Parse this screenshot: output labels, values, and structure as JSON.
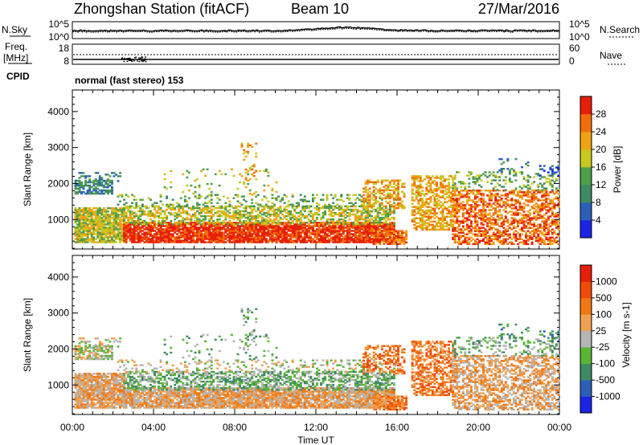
{
  "header": {
    "station_title": "Zhongshan Station (fitACF)",
    "beam": "Beam 10",
    "date": "27/Mar/2016",
    "mode": "normal (fast stereo) 153"
  },
  "top_panel": {
    "left_label": "N.Sky",
    "left_ticks": [
      "10^5",
      "10^0"
    ],
    "right_label": "N.Search",
    "right_ticks": [
      "10^5",
      "10^0"
    ]
  },
  "freq_panel": {
    "left_label_line1": "Freq.",
    "left_label_line2": "[MHz]",
    "left_ticks": [
      "18",
      "8"
    ],
    "cpid_label": "CPID",
    "right_label": "Nave",
    "right_ticks": [
      "60",
      "0"
    ]
  },
  "colors": {
    "power": [
      "#1a23e6",
      "#2d5fb8",
      "#3f8a62",
      "#4f9e4a",
      "#c8c81e",
      "#f0a214",
      "#f06e0a",
      "#e61e0a"
    ],
    "velocity": [
      "#e61e0a",
      "#f04a0a",
      "#f07814",
      "#f0a050",
      "#b4b4b4",
      "#5ab436",
      "#3f8a62",
      "#2d5fb8",
      "#1a23e6"
    ]
  },
  "chart_data": [
    {
      "type": "heatmap",
      "quantity": "power",
      "xlabel": "",
      "ylabel": "Slant Range [km]",
      "ylim": [
        180,
        4600
      ],
      "xlim_hours": [
        0,
        24
      ],
      "yticks": [
        "1000",
        "2000",
        "3000",
        "4000"
      ],
      "colorbar_label": "Power [dB]",
      "colorbar_ticks": [
        "4",
        "8",
        "12",
        "16",
        "20",
        "24",
        "28"
      ],
      "colorbar_range": [
        0,
        32
      ]
    },
    {
      "type": "heatmap",
      "quantity": "velocity",
      "xlabel": "Time UT",
      "ylabel": "Slant Range [km]",
      "ylim": [
        180,
        4600
      ],
      "xlim_hours": [
        0,
        24
      ],
      "xticks": [
        "00:00",
        "04:00",
        "08:00",
        "12:00",
        "16:00",
        "20:00",
        "00:00"
      ],
      "yticks": [
        "1000",
        "2000",
        "3000",
        "4000"
      ],
      "colorbar_label": "Velocity [m s-1]",
      "colorbar_ticks": [
        "1000",
        "500",
        "100",
        "25",
        "-25",
        "-100",
        "-500",
        "-1000"
      ]
    }
  ]
}
